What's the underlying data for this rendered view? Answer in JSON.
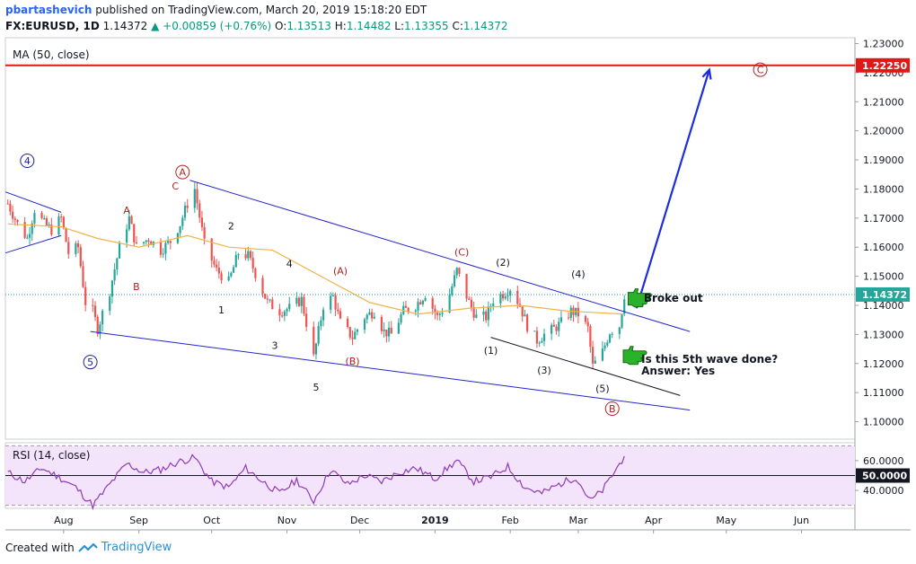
{
  "header": {
    "author": "pbartashevich",
    "published": "published on TradingView.com, March 20, 2019 15:18:20 EDT",
    "symbol": "FX:EURUSD, 1D",
    "last": "1.14372",
    "change": "+0.00859 (+0.76%)",
    "o_label": "O:",
    "o_val": "1.13513",
    "h_label": "H:",
    "h_val": "1.14482",
    "l_label": "L:",
    "l_val": "1.13355",
    "c_label": "C:",
    "c_val": "1.14372"
  },
  "footer": {
    "created_with": "Created with",
    "brand": "TradingView"
  },
  "chart_data": {
    "type": "candlestick",
    "title": "FX:EURUSD, 1D",
    "price_axis": {
      "range": [
        1.094,
        1.232
      ],
      "ticks": [
        "1.23000",
        "1.22000",
        "1.21000",
        "1.20000",
        "1.19000",
        "1.18000",
        "1.17000",
        "1.16000",
        "1.15000",
        "1.14000",
        "1.13000",
        "1.12000",
        "1.11000",
        "1.10000"
      ]
    },
    "time_axis": {
      "labels": [
        {
          "text": "Aug",
          "date": "2018-08-01"
        },
        {
          "text": "Sep",
          "date": "2018-09-01"
        },
        {
          "text": "Oct",
          "date": "2018-10-01"
        },
        {
          "text": "Nov",
          "date": "2018-11-01"
        },
        {
          "text": "Dec",
          "date": "2018-12-01"
        },
        {
          "text": "2019",
          "date": "2019-01-01",
          "bold": true
        },
        {
          "text": "Feb",
          "date": "2019-02-01"
        },
        {
          "text": "Mar",
          "date": "2019-03-01"
        },
        {
          "text": "Apr",
          "date": "2019-04-01"
        },
        {
          "text": "May",
          "date": "2019-05-01"
        },
        {
          "text": "Jun",
          "date": "2019-06-01"
        }
      ],
      "range": [
        "2018-07-08",
        "2019-06-23"
      ]
    },
    "ma_label": "MA (50, close)",
    "level_line": {
      "value": 1.2225,
      "label": "1.22250",
      "color": "#e01818"
    },
    "last_price": {
      "value": 1.14372,
      "label": "1.14372",
      "color": "#26a69a"
    },
    "candle_colors": {
      "up": "#26a69a",
      "down": "#ef5350"
    },
    "price_path": [
      [
        "2018-07-09",
        1.175
      ],
      [
        "2018-07-13",
        1.168
      ],
      [
        "2018-07-17",
        1.163
      ],
      [
        "2018-07-20",
        1.173
      ],
      [
        "2018-07-24",
        1.168
      ],
      [
        "2018-07-27",
        1.166
      ],
      [
        "2018-07-31",
        1.17
      ],
      [
        "2018-08-03",
        1.158
      ],
      [
        "2018-08-07",
        1.16
      ],
      [
        "2018-08-10",
        1.141
      ],
      [
        "2018-08-13",
        1.138
      ],
      [
        "2018-08-15",
        1.132
      ],
      [
        "2018-08-20",
        1.145
      ],
      [
        "2018-08-24",
        1.16
      ],
      [
        "2018-08-28",
        1.17
      ],
      [
        "2018-08-31",
        1.16
      ],
      [
        "2018-09-05",
        1.163
      ],
      [
        "2018-09-10",
        1.159
      ],
      [
        "2018-09-14",
        1.162
      ],
      [
        "2018-09-18",
        1.168
      ],
      [
        "2018-09-21",
        1.175
      ],
      [
        "2018-09-24",
        1.18
      ],
      [
        "2018-09-28",
        1.161
      ],
      [
        "2018-10-03",
        1.152
      ],
      [
        "2018-10-08",
        1.148
      ],
      [
        "2018-10-12",
        1.158
      ],
      [
        "2018-10-16",
        1.157
      ],
      [
        "2018-10-19",
        1.151
      ],
      [
        "2018-10-24",
        1.141
      ],
      [
        "2018-10-29",
        1.138
      ],
      [
        "2018-11-02",
        1.139
      ],
      [
        "2018-11-07",
        1.142
      ],
      [
        "2018-11-12",
        1.122
      ],
      [
        "2018-11-16",
        1.14
      ],
      [
        "2018-11-20",
        1.143
      ],
      [
        "2018-11-23",
        1.134
      ],
      [
        "2018-11-28",
        1.129
      ],
      [
        "2018-12-03",
        1.136
      ],
      [
        "2018-12-07",
        1.138
      ],
      [
        "2018-12-11",
        1.131
      ],
      [
        "2018-12-14",
        1.13
      ],
      [
        "2018-12-19",
        1.138
      ],
      [
        "2018-12-24",
        1.14
      ],
      [
        "2018-12-28",
        1.144
      ],
      [
        "2019-01-02",
        1.136
      ],
      [
        "2019-01-06",
        1.141
      ],
      [
        "2019-01-10",
        1.152
      ],
      [
        "2019-01-15",
        1.141
      ],
      [
        "2019-01-18",
        1.136
      ],
      [
        "2019-01-22",
        1.136
      ],
      [
        "2019-01-25",
        1.142
      ],
      [
        "2019-01-29",
        1.144
      ],
      [
        "2019-02-01",
        1.146
      ],
      [
        "2019-02-05",
        1.14
      ],
      [
        "2019-02-08",
        1.133
      ],
      [
        "2019-02-12",
        1.128
      ],
      [
        "2019-02-15",
        1.13
      ],
      [
        "2019-02-19",
        1.132
      ],
      [
        "2019-02-22",
        1.134
      ],
      [
        "2019-02-26",
        1.138
      ],
      [
        "2019-03-01",
        1.137
      ],
      [
        "2019-03-05",
        1.132
      ],
      [
        "2019-03-07",
        1.119
      ],
      [
        "2019-03-11",
        1.124
      ],
      [
        "2019-03-14",
        1.131
      ],
      [
        "2019-03-18",
        1.133
      ],
      [
        "2019-03-20",
        1.1437
      ]
    ],
    "ma_path": [
      [
        "2018-07-09",
        1.168
      ],
      [
        "2018-07-31",
        1.167
      ],
      [
        "2018-08-15",
        1.163
      ],
      [
        "2018-09-01",
        1.16
      ],
      [
        "2018-09-21",
        1.164
      ],
      [
        "2018-10-08",
        1.16
      ],
      [
        "2018-10-26",
        1.159
      ],
      [
        "2018-11-15",
        1.15
      ],
      [
        "2018-12-05",
        1.141
      ],
      [
        "2018-12-25",
        1.137
      ],
      [
        "2019-01-15",
        1.139
      ],
      [
        "2019-02-05",
        1.14
      ],
      [
        "2019-02-25",
        1.138
      ],
      [
        "2019-03-20",
        1.137
      ]
    ],
    "trendlines": [
      {
        "name": "upper-channel",
        "from": [
          "2018-07-08",
          1.179
        ],
        "to": [
          "2018-07-31",
          1.172
        ],
        "color": "#2424d0"
      },
      {
        "name": "lower-channel-start",
        "from": [
          "2018-07-08",
          1.158
        ],
        "to": [
          "2018-07-31",
          1.164
        ],
        "color": "#2424d0"
      },
      {
        "name": "wedge-top",
        "from": [
          "2018-09-22",
          1.183
        ],
        "to": [
          "2019-04-16",
          1.131
        ],
        "color": "#2424d0"
      },
      {
        "name": "wedge-bottom",
        "from": [
          "2018-08-12",
          1.131
        ],
        "to": [
          "2019-04-16",
          1.104
        ],
        "color": "#2424d0"
      },
      {
        "name": "sub-wedge-bottom",
        "from": [
          "2019-01-24",
          1.129
        ],
        "to": [
          "2019-04-12",
          1.109
        ],
        "color": "#131722"
      }
    ],
    "projection_arrow": {
      "from": [
        "2019-03-25",
        1.139
      ],
      "to": [
        "2019-04-24",
        1.221
      ],
      "color": "#1c2ddf"
    },
    "wave_labels": [
      {
        "text": "4",
        "at": [
          "2018-07-17",
          1.1897
        ],
        "circled": true,
        "color": "#1c1ca8"
      },
      {
        "text": "5",
        "at": [
          "2018-08-12",
          1.1205
        ],
        "circled": true,
        "color": "#1c1ca8"
      },
      {
        "text": "A",
        "at": [
          "2018-09-19",
          1.1858
        ],
        "circled": true,
        "color": "#b01f1f"
      },
      {
        "text": "C",
        "at": [
          "2018-09-16",
          1.181
        ],
        "circled": false,
        "color": "#b01f1f"
      },
      {
        "text": "A",
        "at": [
          "2018-08-27",
          1.1727
        ],
        "circled": false,
        "color": "#b01f1f"
      },
      {
        "text": "B",
        "at": [
          "2018-08-31",
          1.1465
        ],
        "circled": false,
        "color": "#b01f1f"
      },
      {
        "text": "2",
        "at": [
          "2018-10-09",
          1.1673
        ],
        "circled": false,
        "color": "#131722"
      },
      {
        "text": "1",
        "at": [
          "2018-10-05",
          1.1384
        ],
        "circled": false,
        "color": "#131722"
      },
      {
        "text": "4",
        "at": [
          "2018-11-02",
          1.1543
        ],
        "circled": false,
        "color": "#131722"
      },
      {
        "text": "3",
        "at": [
          "2018-10-27",
          1.1262
        ],
        "circled": false,
        "color": "#131722"
      },
      {
        "text": "5",
        "at": [
          "2018-11-13",
          1.1119
        ],
        "circled": false,
        "color": "#131722"
      },
      {
        "text": "(A)",
        "at": [
          "2018-11-23",
          1.1519
        ],
        "circled": false,
        "color": "#b01f1f"
      },
      {
        "text": "(B)",
        "at": [
          "2018-11-28",
          1.1209
        ],
        "circled": false,
        "color": "#b01f1f"
      },
      {
        "text": "(C)",
        "at": [
          "2019-01-12",
          1.1583
        ],
        "circled": false,
        "color": "#b01f1f"
      },
      {
        "text": "(2)",
        "at": [
          "2019-01-29",
          1.1548
        ],
        "circled": false,
        "color": "#131722"
      },
      {
        "text": "(1)",
        "at": [
          "2019-01-24",
          1.1245
        ],
        "circled": false,
        "color": "#131722"
      },
      {
        "text": "(3)",
        "at": [
          "2019-02-15",
          1.1177
        ],
        "circled": false,
        "color": "#131722"
      },
      {
        "text": "(4)",
        "at": [
          "2019-03-01",
          1.1508
        ],
        "circled": false,
        "color": "#131722"
      },
      {
        "text": "(5)",
        "at": [
          "2019-03-11",
          1.1115
        ],
        "circled": false,
        "color": "#131722"
      },
      {
        "text": "B",
        "at": [
          "2019-03-15",
          1.1045
        ],
        "circled": true,
        "color": "#b01f1f"
      },
      {
        "text": "C",
        "at": [
          "2019-05-15",
          1.221
        ],
        "circled": true,
        "color": "#b01f1f"
      }
    ],
    "notes": [
      {
        "text": "Broke out",
        "at": [
          "2019-03-28",
          1.1424
        ],
        "hand_at": [
          "2019-03-26",
          1.1432
        ]
      },
      {
        "text": "Is this 5th wave done?",
        "text2": "Answer: Yes",
        "at": [
          "2019-03-27",
          1.1215
        ],
        "hand_at": [
          "2019-03-24",
          1.1234
        ]
      }
    ],
    "rsi": {
      "label": "RSI (14, close)",
      "range": [
        28,
        72
      ],
      "ticks": [
        "60.0000",
        "40.0000"
      ],
      "bands": [
        70,
        30
      ],
      "midline": {
        "value": 50,
        "label": "50.0000"
      },
      "color": "#8e3bb5",
      "band_fill": "#f4e4fb",
      "path": [
        [
          "2018-07-09",
          52
        ],
        [
          "2018-07-16",
          46
        ],
        [
          "2018-07-23",
          55
        ],
        [
          "2018-07-30",
          49
        ],
        [
          "2018-08-06",
          42
        ],
        [
          "2018-08-13",
          30
        ],
        [
          "2018-08-20",
          44
        ],
        [
          "2018-08-27",
          58
        ],
        [
          "2018-09-03",
          52
        ],
        [
          "2018-09-10",
          54
        ],
        [
          "2018-09-17",
          59
        ],
        [
          "2018-09-24",
          62
        ],
        [
          "2018-10-01",
          46
        ],
        [
          "2018-10-08",
          42
        ],
        [
          "2018-10-15",
          55
        ],
        [
          "2018-10-22",
          46
        ],
        [
          "2018-10-29",
          38
        ],
        [
          "2018-11-05",
          47
        ],
        [
          "2018-11-12",
          33
        ],
        [
          "2018-11-19",
          54
        ],
        [
          "2018-11-26",
          44
        ],
        [
          "2018-12-03",
          50
        ],
        [
          "2018-12-10",
          46
        ],
        [
          "2018-12-17",
          52
        ],
        [
          "2018-12-24",
          55
        ],
        [
          "2019-01-01",
          48
        ],
        [
          "2019-01-10",
          60
        ],
        [
          "2019-01-17",
          46
        ],
        [
          "2019-01-24",
          49
        ],
        [
          "2019-01-31",
          56
        ],
        [
          "2019-02-07",
          42
        ],
        [
          "2019-02-14",
          38
        ],
        [
          "2019-02-21",
          44
        ],
        [
          "2019-02-28",
          49
        ],
        [
          "2019-03-06",
          33
        ],
        [
          "2019-03-11",
          40
        ],
        [
          "2019-03-15",
          50
        ],
        [
          "2019-03-20",
          63
        ]
      ]
    }
  }
}
